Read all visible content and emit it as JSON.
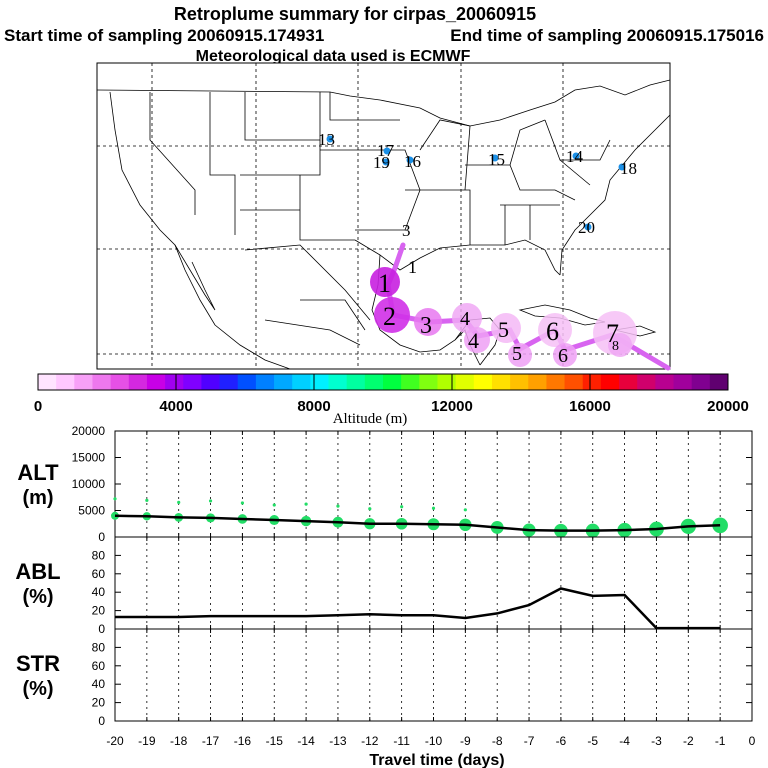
{
  "header": {
    "title": "Retroplume summary for cirpas_20060915",
    "start_label": "Start time of sampling 20060915.174931",
    "end_label": "End time of sampling 20060915.175016",
    "met_label": "Meteorological data used is ECMWF"
  },
  "map": {
    "plume_numbers": [
      "1",
      "2",
      "3",
      "4",
      "4",
      "5",
      "5",
      "6",
      "6",
      "7",
      "8",
      "13",
      "14",
      "15",
      "16",
      "17",
      "18",
      "19",
      "20",
      "1",
      "3"
    ]
  },
  "colorbar": {
    "label": "Altitude (m)",
    "ticks": [
      "0",
      "4000",
      "8000",
      "12000",
      "16000",
      "20000"
    ],
    "colors": [
      "#ffe4ff",
      "#ffc8ff",
      "#f7a0f7",
      "#ee78ee",
      "#e650e6",
      "#d428e0",
      "#c800e6",
      "#a000f0",
      "#8000ff",
      "#5000ff",
      "#2020ff",
      "#0050ff",
      "#0080ff",
      "#00a8ff",
      "#00d0ff",
      "#00f0ff",
      "#00ffd0",
      "#00ffa0",
      "#00ff70",
      "#00ff40",
      "#40ff20",
      "#80ff10",
      "#b0ff00",
      "#e0ff00",
      "#ffff00",
      "#ffe000",
      "#ffc000",
      "#ffa000",
      "#ff7800",
      "#ff5000",
      "#ff2000",
      "#ff0000",
      "#e8003c",
      "#d0006c",
      "#b80090",
      "#a0009c",
      "#800090",
      "#600070"
    ]
  },
  "chart_data": [
    {
      "type": "line",
      "panel": "ALT",
      "ylabel_lines": [
        "ALT",
        "(m)"
      ],
      "ylim": [
        0,
        20000
      ],
      "yticks": [
        "0",
        "5000",
        "10000",
        "15000",
        "20000"
      ],
      "x": [
        -20,
        -19,
        -18,
        -17,
        -16,
        -15,
        -14,
        -13,
        -12,
        -11,
        -10,
        -9,
        -8,
        -7,
        -6,
        -5,
        -4,
        -3,
        -2,
        -1
      ],
      "values": [
        4000,
        3900,
        3700,
        3600,
        3400,
        3200,
        3000,
        2800,
        2500,
        2500,
        2400,
        2300,
        1800,
        1300,
        1200,
        1200,
        1300,
        1500,
        2000,
        2200
      ],
      "marker_color": "#22dd66"
    },
    {
      "type": "line",
      "panel": "ABL",
      "ylabel_lines": [
        "ABL",
        "(%)"
      ],
      "ylim": [
        0,
        100
      ],
      "yticks": [
        "0",
        "20",
        "40",
        "60",
        "80"
      ],
      "x": [
        -20,
        -19,
        -18,
        -17,
        -16,
        -15,
        -14,
        -13,
        -12,
        -11,
        -10,
        -9,
        -8,
        -7,
        -6,
        -5,
        -4,
        -3,
        -2,
        -1
      ],
      "values": [
        13,
        13,
        13,
        14,
        14,
        14,
        14,
        15,
        16,
        15,
        15,
        12,
        17,
        26,
        44,
        36,
        37,
        1,
        1,
        1
      ]
    },
    {
      "type": "line",
      "panel": "STR",
      "ylabel_lines": [
        "STR",
        "(%)"
      ],
      "ylim": [
        0,
        100
      ],
      "yticks": [
        "0",
        "20",
        "40",
        "60",
        "80"
      ],
      "x": [],
      "values": []
    }
  ],
  "xaxis": {
    "label": "Travel time (days)",
    "ticks": [
      "-20",
      "-19",
      "-18",
      "-17",
      "-16",
      "-15",
      "-14",
      "-13",
      "-12",
      "-11",
      "-10",
      "-9",
      "-8",
      "-7",
      "-6",
      "-5",
      "-4",
      "-3",
      "-2",
      "-1",
      "0"
    ]
  }
}
